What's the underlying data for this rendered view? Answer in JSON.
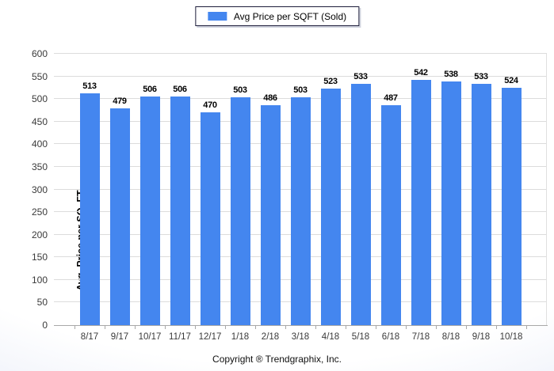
{
  "legend": {
    "label": "Avg Price per SQFT (Sold)"
  },
  "footer": {
    "copyright": "Copyright ® Trendgraphix, Inc."
  },
  "colors": {
    "bar": "#4486ef",
    "gridline": "#dcdcdc",
    "axis": "#a8a8a8",
    "legend_border": "#1c1c3a",
    "background_edge": "#dbe2f4"
  },
  "chart_data": {
    "type": "bar",
    "title": "",
    "series_name": "Avg Price per SQFT (Sold)",
    "categories": [
      "8/17",
      "9/17",
      "10/17",
      "11/17",
      "12/17",
      "1/18",
      "2/18",
      "3/18",
      "4/18",
      "5/18",
      "6/18",
      "7/18",
      "8/18",
      "9/18",
      "10/18"
    ],
    "values": [
      513,
      479,
      506,
      506,
      470,
      503,
      486,
      503,
      523,
      533,
      487,
      542,
      538,
      533,
      524
    ],
    "xlabel": "",
    "ylabel": "Avg. Price per SQ. FT.",
    "ylim": [
      0,
      600
    ],
    "ytick_step": 50,
    "yticks": [
      0,
      50,
      100,
      150,
      200,
      250,
      300,
      350,
      400,
      450,
      500,
      550,
      600
    ],
    "grid": true,
    "legend_position": "top-center",
    "value_labels": true
  }
}
